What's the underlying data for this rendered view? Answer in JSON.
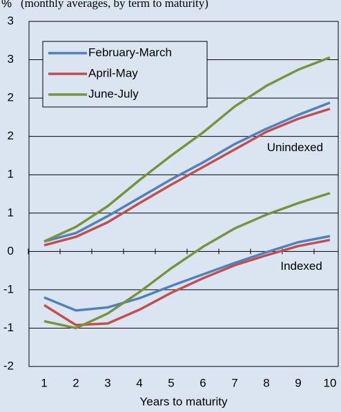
{
  "chart_data": {
    "type": "line",
    "title": "(monthly averages, by term to maturity)",
    "y_unit": "%",
    "x_label": "Years to maturity",
    "categories": [
      "1",
      "2",
      "3",
      "4",
      "5",
      "6",
      "7",
      "8",
      "9",
      "10"
    ],
    "ylim": [
      -1.5,
      3.0
    ],
    "yticks": [
      {
        "value": -1.5,
        "label": "-2"
      },
      {
        "value": -1.0,
        "label": "-1"
      },
      {
        "value": -0.5,
        "label": "-1"
      },
      0,
      {
        "value": 0.5,
        "label": "1"
      },
      {
        "value": 1.0,
        "label": "1"
      },
      {
        "value": 1.5,
        "label": "2"
      },
      {
        "value": 2.0,
        "label": "2"
      },
      {
        "value": 2.5,
        "label": "3"
      },
      {
        "value": 3.0,
        "label": "3"
      }
    ],
    "grid": true,
    "annotations": [
      {
        "text": "Unindexed",
        "x": 8.9,
        "y": 1.35
      },
      {
        "text": "Indexed",
        "x": 9.1,
        "y": -0.2
      }
    ],
    "series": [
      {
        "name": "February-March",
        "color": "#4f81bd",
        "values": [
          0.13,
          0.24,
          0.46,
          0.7,
          0.94,
          1.16,
          1.4,
          1.6,
          1.78,
          1.94
        ],
        "indexed": [
          -0.6,
          -0.77,
          -0.73,
          -0.61,
          -0.45,
          -0.3,
          -0.15,
          -0.01,
          0.12,
          0.2
        ]
      },
      {
        "name": "April-May",
        "color": "#c0504d",
        "values": [
          0.08,
          0.19,
          0.38,
          0.63,
          0.87,
          1.1,
          1.33,
          1.56,
          1.73,
          1.86
        ],
        "indexed": [
          -0.7,
          -0.96,
          -0.94,
          -0.76,
          -0.54,
          -0.35,
          -0.18,
          -0.05,
          0.07,
          0.15
        ]
      },
      {
        "name": "June-July",
        "color": "#77933c",
        "values": [
          0.13,
          0.32,
          0.59,
          0.93,
          1.25,
          1.55,
          1.89,
          2.16,
          2.37,
          2.53
        ],
        "indexed": [
          -0.91,
          -1.0,
          -0.81,
          -0.53,
          -0.22,
          0.06,
          0.3,
          0.48,
          0.63,
          0.76
        ]
      }
    ]
  }
}
